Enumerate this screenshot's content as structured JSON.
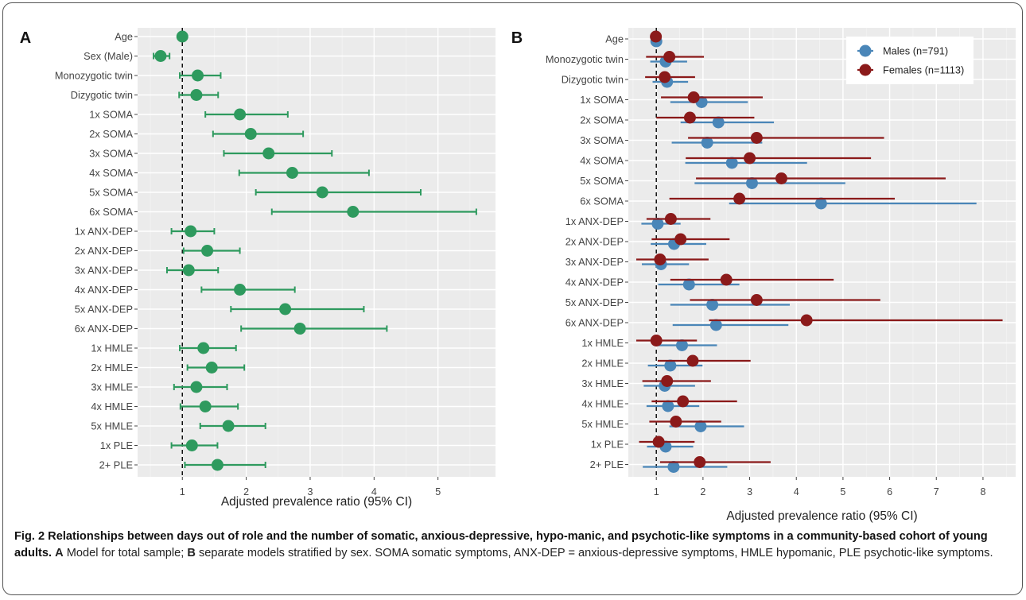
{
  "chart_data": [
    {
      "panel_label": "A",
      "type": "forest",
      "xlabel": "Adjusted prevalence ratio (95% CI)",
      "xlim": [
        0.3,
        5.9
      ],
      "xticks": [
        1,
        2,
        3,
        4,
        5
      ],
      "reference_line": 1,
      "grid": true,
      "color": "#2e9a5e",
      "categories": [
        "Age",
        "Sex (Male)",
        "Monozygotic twin",
        "Dizygotic twin",
        "1x SOMA",
        "2x SOMA",
        "3x SOMA",
        "4x SOMA",
        "5x SOMA",
        "6x SOMA",
        "1x ANX-DEP",
        "2x ANX-DEP",
        "3x ANX-DEP",
        "4x ANX-DEP",
        "5x ANX-DEP",
        "6x ANX-DEP",
        "1x HMLE",
        "2x HMLE",
        "3x HMLE",
        "4x HMLE",
        "5x HMLE",
        "1x PLE",
        "2+ PLE"
      ],
      "series": [
        {
          "estimate": [
            1.0,
            0.66,
            1.24,
            1.22,
            1.9,
            2.07,
            2.35,
            2.72,
            3.19,
            3.67,
            1.13,
            1.39,
            1.1,
            1.9,
            2.61,
            2.84,
            1.33,
            1.46,
            1.22,
            1.36,
            1.72,
            1.15,
            1.55
          ],
          "lower": [
            0.98,
            0.55,
            0.96,
            0.95,
            1.36,
            1.48,
            1.65,
            1.89,
            2.15,
            2.4,
            0.83,
            1.02,
            0.76,
            1.3,
            1.76,
            1.92,
            0.96,
            1.08,
            0.87,
            0.97,
            1.28,
            0.83,
            1.04
          ],
          "upper": [
            1.02,
            0.8,
            1.6,
            1.56,
            2.65,
            2.89,
            3.34,
            3.92,
            4.73,
            5.6,
            1.5,
            1.9,
            1.56,
            2.76,
            3.84,
            4.2,
            1.84,
            1.97,
            1.7,
            1.87,
            2.3,
            1.55,
            2.3
          ]
        }
      ]
    },
    {
      "panel_label": "B",
      "type": "forest",
      "xlabel": "Adjusted prevalence ratio (95% CI)",
      "xlim": [
        0.4,
        8.7
      ],
      "xticks": [
        1,
        2,
        3,
        4,
        5,
        6,
        7,
        8
      ],
      "reference_line": 1,
      "grid": true,
      "legend_position": "top-right",
      "categories": [
        "Age",
        "Monozygotic twin",
        "Dizygotic twin",
        "1x SOMA",
        "2x SOMA",
        "3x SOMA",
        "4x SOMA",
        "5x SOMA",
        "6x SOMA",
        "1x ANX-DEP",
        "2x ANX-DEP",
        "3x ANX-DEP",
        "4x ANX-DEP",
        "5x ANX-DEP",
        "6x ANX-DEP",
        "1x HMLE",
        "2x HMLE",
        "3x HMLE",
        "4x HMLE",
        "5x HMLE",
        "1x PLE",
        "2+ PLE"
      ],
      "series": [
        {
          "name": "Males (n=791)",
          "color": "#4a86b8",
          "estimate": [
            1.0,
            1.2,
            1.23,
            1.97,
            2.33,
            2.09,
            2.62,
            3.05,
            4.53,
            1.03,
            1.38,
            1.1,
            1.7,
            2.2,
            2.28,
            1.55,
            1.3,
            1.18,
            1.25,
            1.95,
            1.2,
            1.37
          ],
          "lower": [
            0.97,
            0.87,
            0.92,
            1.3,
            1.52,
            1.33,
            1.62,
            1.82,
            2.56,
            0.68,
            0.88,
            0.69,
            1.04,
            1.3,
            1.35,
            1.0,
            0.82,
            0.73,
            0.79,
            1.28,
            0.8,
            0.71
          ],
          "upper": [
            1.03,
            1.66,
            1.68,
            2.96,
            3.52,
            3.27,
            4.23,
            5.05,
            7.86,
            1.52,
            2.07,
            1.7,
            2.78,
            3.86,
            3.83,
            2.3,
            1.99,
            1.83,
            1.92,
            2.88,
            1.79,
            2.52
          ]
        },
        {
          "name": "Females (n=1113)",
          "color": "#8b1a1a",
          "estimate": [
            0.99,
            1.28,
            1.18,
            1.8,
            1.72,
            3.15,
            3.0,
            3.68,
            2.78,
            1.31,
            1.52,
            1.08,
            2.5,
            3.15,
            4.22,
            1.0,
            1.78,
            1.23,
            1.57,
            1.42,
            1.05,
            1.93
          ],
          "lower": [
            0.96,
            0.78,
            0.76,
            1.1,
            1.0,
            1.68,
            1.63,
            1.85,
            1.28,
            0.79,
            0.9,
            0.57,
            1.3,
            1.72,
            2.13,
            0.57,
            1.03,
            0.7,
            0.9,
            0.85,
            0.63,
            1.08
          ],
          "upper": [
            1.03,
            2.02,
            1.83,
            3.28,
            3.1,
            5.88,
            5.6,
            7.2,
            6.11,
            2.16,
            2.57,
            2.12,
            4.8,
            5.8,
            8.42,
            1.87,
            3.02,
            2.17,
            2.73,
            2.39,
            1.82,
            3.45
          ]
        }
      ]
    }
  ],
  "caption": {
    "title": "Fig. 2 Relationships between days out of role and the number of somatic, anxious-depressive, hypo-manic, and psychotic-like symptoms in a community-based cohort of young adults.",
    "label_a": "A",
    "text_a": " Model for total sample; ",
    "label_b": "B",
    "text_b": " separate models stratified by sex. SOMA somatic symptoms, ANX-DEP = anxious-depressive symptoms, HMLE hypomanic, PLE psychotic-like symptoms."
  }
}
